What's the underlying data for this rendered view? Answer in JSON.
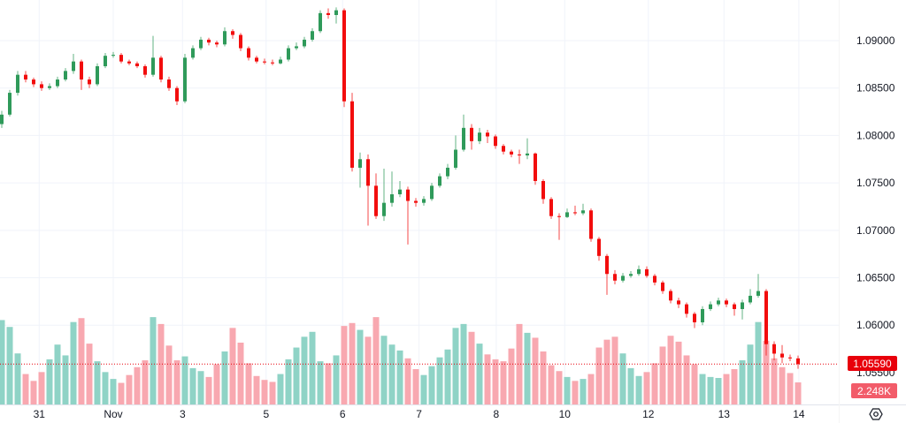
{
  "chart_data": {
    "type": "candlestick",
    "title": "",
    "ylabel": "",
    "xlabel": "",
    "ylim": [
      1.053,
      1.0942
    ],
    "y_ticks": [
      "1.09000",
      "1.08500",
      "1.08000",
      "1.07500",
      "1.07000",
      "1.06500",
      "1.06000",
      "1.05500"
    ],
    "x_ticks": [
      {
        "label": "31",
        "index": 4.7
      },
      {
        "label": "Nov",
        "index": 14
      },
      {
        "label": "3",
        "index": 22.7
      },
      {
        "label": "5",
        "index": 33.2
      },
      {
        "label": "6",
        "index": 42.8
      },
      {
        "label": "7",
        "index": 52.4
      },
      {
        "label": "8",
        "index": 62.1
      },
      {
        "label": "10",
        "index": 70.7
      },
      {
        "label": "12",
        "index": 81.2
      },
      {
        "label": "13",
        "index": 90.7
      },
      {
        "label": "14",
        "index": 100.1
      }
    ],
    "grid": true,
    "last_price_label": "1.05590",
    "last_price": 1.0559,
    "last_volume_label": "2.248K",
    "volume_max": 9,
    "colors": {
      "up": "#2f9a5a",
      "down": "#f20d0d",
      "vol_up": "#8fd3c6",
      "vol_down": "#f8a8b0",
      "price_tag": "#e8000b",
      "volume_tag": "#f25c6a",
      "grid": "#f0f3fa"
    },
    "ohlc": [
      [
        1.0812,
        1.0826,
        1.0808,
        1.0822
      ],
      [
        1.0822,
        1.0848,
        1.082,
        1.0845
      ],
      [
        1.0845,
        1.0868,
        1.0842,
        1.0864
      ],
      [
        1.0864,
        1.0868,
        1.0856,
        1.0859
      ],
      [
        1.0859,
        1.0861,
        1.0851,
        1.0854
      ],
      [
        1.0854,
        1.0857,
        1.0847,
        1.085
      ],
      [
        1.085,
        1.0855,
        1.0848,
        1.0852
      ],
      [
        1.0852,
        1.0862,
        1.085,
        1.0859
      ],
      [
        1.0859,
        1.0871,
        1.0857,
        1.0868
      ],
      [
        1.0868,
        1.0886,
        1.0865,
        1.0878
      ],
      [
        1.0878,
        1.088,
        1.0848,
        1.0859
      ],
      [
        1.0859,
        1.0862,
        1.085,
        1.0854
      ],
      [
        1.0854,
        1.0876,
        1.0852,
        1.0873
      ],
      [
        1.0873,
        1.0887,
        1.0871,
        1.0884
      ],
      [
        1.0884,
        1.0888,
        1.0882,
        1.0885
      ],
      [
        1.0885,
        1.0887,
        1.0876,
        1.0878
      ],
      [
        1.0878,
        1.088,
        1.0874,
        1.0876
      ],
      [
        1.0876,
        1.0878,
        1.0871,
        1.0873
      ],
      [
        1.0873,
        1.0875,
        1.0861,
        1.0864
      ],
      [
        1.0864,
        1.0905,
        1.0862,
        1.0882
      ],
      [
        1.0882,
        1.0884,
        1.0856,
        1.0859
      ],
      [
        1.0859,
        1.0862,
        1.0847,
        1.085
      ],
      [
        1.085,
        1.0852,
        1.0832,
        1.0836
      ],
      [
        1.0836,
        1.0886,
        1.0834,
        1.0882
      ],
      [
        1.0882,
        1.0895,
        1.088,
        1.0892
      ],
      [
        1.0892,
        1.0904,
        1.089,
        1.0901
      ],
      [
        1.0901,
        1.0903,
        1.0895,
        1.0898
      ],
      [
        1.0898,
        1.09,
        1.0893,
        1.0896
      ],
      [
        1.0896,
        1.0914,
        1.0894,
        1.091
      ],
      [
        1.091,
        1.0912,
        1.0902,
        1.0906
      ],
      [
        1.0906,
        1.0908,
        1.0889,
        1.0892
      ],
      [
        1.0892,
        1.0894,
        1.0879,
        1.0882
      ],
      [
        1.0882,
        1.0884,
        1.0876,
        1.0878
      ],
      [
        1.0878,
        1.0881,
        1.0875,
        1.0877
      ],
      [
        1.0877,
        1.088,
        1.0874,
        1.0876
      ],
      [
        1.0876,
        1.0883,
        1.0875,
        1.088
      ],
      [
        1.088,
        1.0895,
        1.0878,
        1.0892
      ],
      [
        1.0892,
        1.0898,
        1.089,
        1.0894
      ],
      [
        1.0894,
        1.0904,
        1.0892,
        1.0901
      ],
      [
        1.0901,
        1.0913,
        1.0899,
        1.091
      ],
      [
        1.091,
        1.0932,
        1.0908,
        1.0929
      ],
      [
        1.0929,
        1.0934,
        1.0923,
        1.0927
      ],
      [
        1.0927,
        1.0935,
        1.0918,
        1.0932
      ],
      [
        1.0932,
        1.0934,
        1.083,
        1.0836
      ],
      [
        1.0836,
        1.0845,
        1.0762,
        1.0766
      ],
      [
        1.0766,
        1.0782,
        1.0745,
        1.0775
      ],
      [
        1.0775,
        1.078,
        1.0705,
        1.0747
      ],
      [
        1.0747,
        1.076,
        1.0712,
        1.0715
      ],
      [
        1.0715,
        1.0765,
        1.071,
        1.0729
      ],
      [
        1.0729,
        1.0762,
        1.0725,
        1.0738
      ],
      [
        1.0738,
        1.0752,
        1.0735,
        1.0743
      ],
      [
        1.0743,
        1.0746,
        1.0685,
        1.0731
      ],
      [
        1.0731,
        1.0734,
        1.0725,
        1.0729
      ],
      [
        1.0729,
        1.0736,
        1.0726,
        1.0733
      ],
      [
        1.0733,
        1.075,
        1.0731,
        1.0747
      ],
      [
        1.0747,
        1.076,
        1.0745,
        1.0757
      ],
      [
        1.0757,
        1.077,
        1.0754,
        1.0766
      ],
      [
        1.0766,
        1.08,
        1.0764,
        1.0785
      ],
      [
        1.0785,
        1.0822,
        1.0783,
        1.0808
      ],
      [
        1.0808,
        1.0812,
        1.0785,
        1.0794
      ],
      [
        1.0794,
        1.0808,
        1.0791,
        1.0803
      ],
      [
        1.0803,
        1.0806,
        1.0792,
        1.0799
      ],
      [
        1.0799,
        1.0801,
        1.0786,
        1.0789
      ],
      [
        1.0789,
        1.0791,
        1.078,
        1.0783
      ],
      [
        1.0783,
        1.0785,
        1.0777,
        1.078
      ],
      [
        1.078,
        1.0785,
        1.077,
        1.0779
      ],
      [
        1.0779,
        1.0797,
        1.0775,
        1.0781
      ],
      [
        1.0781,
        1.0782,
        1.0748,
        1.0752
      ],
      [
        1.0752,
        1.0754,
        1.0728,
        1.0733
      ],
      [
        1.0733,
        1.0735,
        1.0712,
        1.0715
      ],
      [
        1.0715,
        1.0718,
        1.069,
        1.0714
      ],
      [
        1.0714,
        1.0723,
        1.0713,
        1.0719
      ],
      [
        1.0719,
        1.0726,
        1.0716,
        1.0718
      ],
      [
        1.0718,
        1.0728,
        1.0716,
        1.0721
      ],
      [
        1.0721,
        1.0723,
        1.0688,
        1.0691
      ],
      [
        1.0691,
        1.0693,
        1.0668,
        1.0673
      ],
      [
        1.0673,
        1.0675,
        1.0632,
        1.0654
      ],
      [
        1.0654,
        1.0658,
        1.0643,
        1.0647
      ],
      [
        1.0647,
        1.0655,
        1.0645,
        1.0652
      ],
      [
        1.0652,
        1.0657,
        1.065,
        1.0654
      ],
      [
        1.0654,
        1.0663,
        1.0652,
        1.0659
      ],
      [
        1.0659,
        1.0662,
        1.065,
        1.0652
      ],
      [
        1.0652,
        1.0654,
        1.0642,
        1.0645
      ],
      [
        1.0645,
        1.0647,
        1.0633,
        1.0636
      ],
      [
        1.0636,
        1.0638,
        1.0623,
        1.0626
      ],
      [
        1.0626,
        1.0629,
        1.0618,
        1.0622
      ],
      [
        1.0622,
        1.0624,
        1.0608,
        1.0612
      ],
      [
        1.0612,
        1.0614,
        1.0597,
        1.0603
      ],
      [
        1.0603,
        1.062,
        1.06,
        1.0617
      ],
      [
        1.0617,
        1.0625,
        1.0615,
        1.0622
      ],
      [
        1.0622,
        1.0629,
        1.062,
        1.0626
      ],
      [
        1.0626,
        1.0628,
        1.0619,
        1.0622
      ],
      [
        1.0622,
        1.0624,
        1.061,
        1.0617
      ],
      [
        1.0617,
        1.0627,
        1.0606,
        1.0624
      ],
      [
        1.0624,
        1.0638,
        1.0622,
        1.0631
      ],
      [
        1.0631,
        1.0654,
        1.0629,
        1.0636
      ],
      [
        1.0636,
        1.0638,
        1.0568,
        1.058
      ],
      [
        1.058,
        1.0583,
        1.0563,
        1.057
      ],
      [
        1.057,
        1.0579,
        1.056,
        1.0566
      ],
      [
        1.0566,
        1.0569,
        1.0562,
        1.0565
      ],
      [
        1.0565,
        1.0568,
        1.0554,
        1.0559
      ]
    ],
    "volume": [
      8.6,
      7.9,
      5.2,
      3.1,
      2.4,
      3.3,
      4.6,
      6.1,
      5.0,
      8.4,
      8.8,
      6.2,
      4.4,
      3.3,
      2.6,
      2.2,
      3.0,
      3.8,
      4.5,
      8.9,
      8.2,
      6.0,
      4.5,
      4.9,
      3.7,
      3.4,
      2.8,
      4.1,
      5.4,
      7.8,
      6.3,
      4.2,
      2.9,
      2.5,
      2.3,
      3.1,
      4.6,
      5.8,
      6.9,
      7.4,
      4.4,
      4.2,
      5.0,
      8.0,
      8.3,
      7.6,
      6.9,
      8.9,
      7.0,
      6.1,
      5.5,
      4.7,
      3.6,
      3.0,
      3.9,
      4.8,
      5.6,
      7.8,
      8.2,
      7.4,
      6.2,
      5.1,
      4.6,
      4.4,
      5.7,
      8.2,
      7.3,
      6.8,
      5.4,
      4.0,
      3.4,
      2.8,
      2.4,
      2.6,
      3.1,
      5.8,
      6.6,
      6.9,
      5.2,
      3.7,
      2.9,
      3.3,
      4.2,
      5.9,
      7.0,
      6.4,
      5.0,
      4.1,
      3.1,
      2.8,
      2.7,
      3.1,
      3.6,
      4.5,
      6.1,
      8.4,
      6.5,
      4.7,
      3.8,
      3.2,
      2.248
    ]
  }
}
